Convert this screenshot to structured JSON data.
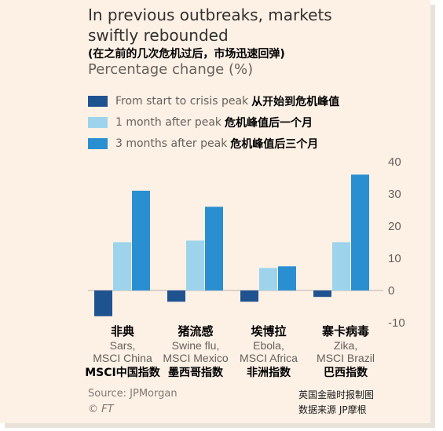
{
  "title": "In previous outbreaks, markets swiftly rebounded",
  "title_cn": "(在之前的几次危机过后，市场迅速回弹)",
  "subtitle": "Percentage change (%)",
  "legend": [
    {
      "en": "From start to crisis peak",
      "cn": "从开始到危机峰值",
      "color": "#1f5390"
    },
    {
      "en": "1 month after peak",
      "cn": "危机峰值后一个月",
      "color": "#9dd4ec"
    },
    {
      "en": "3 months after peak",
      "cn": "危机峰值后三个月",
      "color": "#2a8fd0"
    }
  ],
  "chart_data": {
    "type": "bar",
    "categories": [
      {
        "cn_top": "非典",
        "en": [
          "Sars,",
          "MSCI China"
        ],
        "cn_bottom": "MSCI中国指数"
      },
      {
        "cn_top": "猪流感",
        "en": [
          "Swine flu,",
          "MSCI Mexico"
        ],
        "cn_bottom": "墨西哥指数"
      },
      {
        "cn_top": "埃博拉",
        "en": [
          "Ebola,",
          "MSCI Africa"
        ],
        "cn_bottom": "非洲指数"
      },
      {
        "cn_top": "寨卡病毒",
        "en": [
          "Zika,",
          "MSCI Brazil"
        ],
        "cn_bottom": "巴西指数"
      }
    ],
    "series": [
      {
        "name": "From start to crisis peak",
        "values": [
          -8,
          -3.5,
          -3.5,
          -2
        ],
        "color": "#1f5390"
      },
      {
        "name": "1 month after peak",
        "values": [
          15,
          15.5,
          7,
          15
        ],
        "color": "#9dd4ec"
      },
      {
        "name": "3 months after peak",
        "values": [
          31,
          26,
          7.5,
          36
        ],
        "color": "#2a8fd0"
      }
    ],
    "yticks": [
      40,
      30,
      20,
      10,
      0,
      -10
    ],
    "ylim": [
      -10,
      40
    ],
    "ylabel": "",
    "xlabel": "",
    "grid": false
  },
  "source": "Source: JPMorgan",
  "ft": "© FT",
  "watermark": [
    "英国金融时报制图",
    "数据来源 JP摩根"
  ]
}
